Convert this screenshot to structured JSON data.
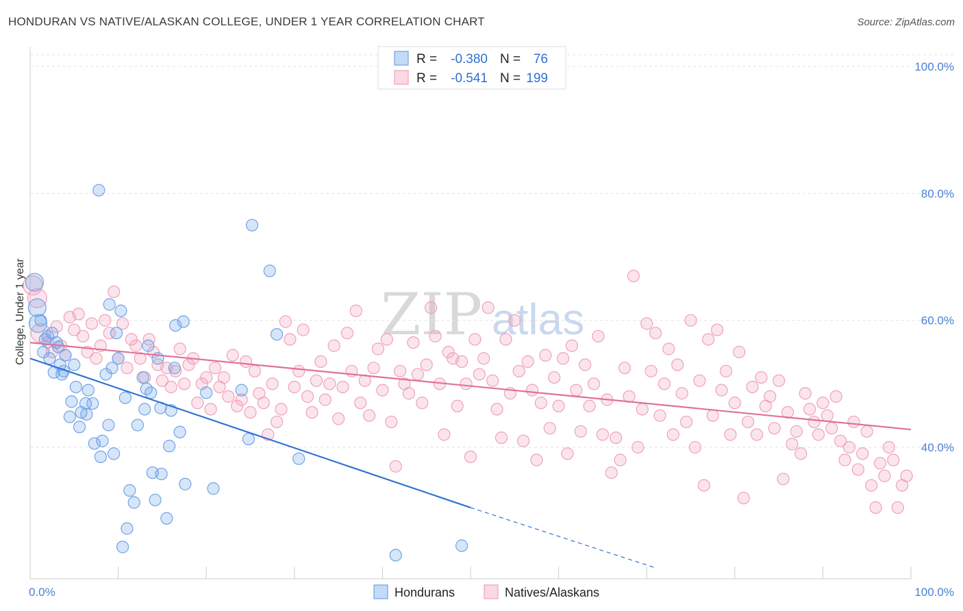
{
  "title": "HONDURAN VS NATIVE/ALASKAN COLLEGE, UNDER 1 YEAR CORRELATION CHART",
  "source": "Source: ZipAtlas.com",
  "watermark": {
    "zip": "ZIP",
    "atlas": "atlas"
  },
  "colors": {
    "blue": "#6fa3e8",
    "blue_line": "#2f72d0",
    "pink": "#f0a0ba",
    "pink_line": "#e0709a"
  },
  "legend": {
    "r_label": "R =",
    "n_label": "N =",
    "entries": [
      {
        "r": "-0.380",
        "n": "76"
      },
      {
        "r": "-0.541",
        "n": "199"
      }
    ]
  },
  "bottom_legend": [
    {
      "label": "Hondurans"
    },
    {
      "label": "Natives/Alaskans"
    }
  ],
  "chart_data": {
    "type": "scatter",
    "xlabel": "",
    "ylabel": "College, Under 1 year",
    "xlim": [
      0,
      100
    ],
    "ylim": [
      20,
      103
    ],
    "x_tick_labels": {
      "left": "0.0%",
      "right": "100.0%"
    },
    "y_ticks": [
      {
        "value": 100,
        "label": "100.0%"
      },
      {
        "value": 80,
        "label": "80.0%"
      },
      {
        "value": 60,
        "label": "60.0%"
      },
      {
        "value": 40,
        "label": "40.0%"
      }
    ],
    "grid": true,
    "series": [
      {
        "name": "Hondurans",
        "trend": {
          "x0": 0,
          "y0": 54.0,
          "x1": 50,
          "y1": 30.5,
          "dash_x1": 71,
          "dash_y1": 21.0
        },
        "points": [
          [
            0.5,
            66
          ],
          [
            0.8,
            62
          ],
          [
            0.9,
            59.5
          ],
          [
            1.2,
            60
          ],
          [
            1.5,
            55
          ],
          [
            1.7,
            57
          ],
          [
            2,
            57.5
          ],
          [
            2.2,
            54
          ],
          [
            2.5,
            58
          ],
          [
            2.7,
            51.8
          ],
          [
            3,
            56.5
          ],
          [
            3.2,
            55.8
          ],
          [
            3.4,
            53
          ],
          [
            3.6,
            51.5
          ],
          [
            3.8,
            52
          ],
          [
            4,
            54.5
          ],
          [
            4.5,
            44.8
          ],
          [
            4.7,
            47.2
          ],
          [
            5,
            53
          ],
          [
            5.2,
            49.5
          ],
          [
            5.6,
            43.2
          ],
          [
            5.8,
            45.5
          ],
          [
            6.3,
            46.9
          ],
          [
            6.4,
            45.2
          ],
          [
            6.6,
            49
          ],
          [
            7.1,
            46.9
          ],
          [
            7.3,
            40.6
          ],
          [
            7.8,
            80.5
          ],
          [
            8,
            38.5
          ],
          [
            8.2,
            41
          ],
          [
            8.6,
            51.5
          ],
          [
            8.9,
            43.5
          ],
          [
            9,
            62.5
          ],
          [
            9.3,
            52.5
          ],
          [
            9.5,
            39
          ],
          [
            9.8,
            58
          ],
          [
            10,
            54
          ],
          [
            10.3,
            61.5
          ],
          [
            10.5,
            24.3
          ],
          [
            10.8,
            47.8
          ],
          [
            11,
            27.2
          ],
          [
            11.3,
            33.2
          ],
          [
            11.8,
            31.3
          ],
          [
            12.2,
            43.5
          ],
          [
            12.8,
            51
          ],
          [
            13,
            46
          ],
          [
            13.2,
            49.2
          ],
          [
            13.4,
            56
          ],
          [
            13.7,
            48.6
          ],
          [
            13.9,
            36
          ],
          [
            14.2,
            31.7
          ],
          [
            14.5,
            54
          ],
          [
            14.8,
            46.2
          ],
          [
            14.9,
            35.8
          ],
          [
            15.5,
            28.8
          ],
          [
            15.8,
            40.2
          ],
          [
            16,
            45.8
          ],
          [
            16.4,
            52.5
          ],
          [
            16.5,
            59.2
          ],
          [
            17,
            42.4
          ],
          [
            17.4,
            59.8
          ],
          [
            17.6,
            34.2
          ],
          [
            20,
            48.6
          ],
          [
            20.8,
            33.5
          ],
          [
            24,
            49
          ],
          [
            24.8,
            41.3
          ],
          [
            25.2,
            75
          ],
          [
            27.2,
            67.8
          ],
          [
            28,
            57.8
          ],
          [
            30.5,
            38.2
          ],
          [
            41.5,
            23
          ],
          [
            49,
            24.5
          ]
        ]
      },
      {
        "name": "Natives/Alaskans",
        "trend": {
          "x0": 0,
          "y0": 56.5,
          "x1": 100,
          "y1": 42.8
        },
        "points": [
          [
            0.3,
            65.5
          ],
          [
            0.8,
            63.5
          ],
          [
            1.2,
            58
          ],
          [
            2,
            56.5
          ],
          [
            2.5,
            55
          ],
          [
            3,
            59
          ],
          [
            3.5,
            56
          ],
          [
            4,
            54.5
          ],
          [
            4.5,
            60.5
          ],
          [
            5,
            58.5
          ],
          [
            5.5,
            61
          ],
          [
            6,
            57.5
          ],
          [
            6.5,
            55
          ],
          [
            7,
            59.5
          ],
          [
            7.5,
            54
          ],
          [
            8,
            56
          ],
          [
            8.5,
            60
          ],
          [
            9,
            58
          ],
          [
            9.5,
            64.5
          ],
          [
            10,
            54
          ],
          [
            10.5,
            59.5
          ],
          [
            11,
            52.5
          ],
          [
            11.5,
            57
          ],
          [
            12,
            56
          ],
          [
            12.5,
            54
          ],
          [
            13,
            51
          ],
          [
            13.5,
            57
          ],
          [
            14,
            55
          ],
          [
            14.5,
            53
          ],
          [
            15,
            50.5
          ],
          [
            15.5,
            52.5
          ],
          [
            16,
            49.5
          ],
          [
            16.5,
            52
          ],
          [
            17,
            55.5
          ],
          [
            17.5,
            50
          ],
          [
            18,
            53
          ],
          [
            18.5,
            54
          ],
          [
            19,
            47
          ],
          [
            19.5,
            50
          ],
          [
            20,
            51
          ],
          [
            20.5,
            46
          ],
          [
            21,
            52.5
          ],
          [
            21.5,
            49.5
          ],
          [
            22,
            51
          ],
          [
            22.5,
            48
          ],
          [
            23,
            54.5
          ],
          [
            23.5,
            46.5
          ],
          [
            24,
            47.5
          ],
          [
            24.5,
            53.5
          ],
          [
            25,
            45.5
          ],
          [
            25.5,
            52
          ],
          [
            26,
            48.5
          ],
          [
            26.5,
            47
          ],
          [
            27,
            42
          ],
          [
            27.5,
            50
          ],
          [
            28,
            44
          ],
          [
            28.5,
            46
          ],
          [
            29,
            59.8
          ],
          [
            29.5,
            57
          ],
          [
            30,
            49.5
          ],
          [
            30.5,
            52
          ],
          [
            31,
            58.5
          ],
          [
            31.5,
            48
          ],
          [
            32,
            45.5
          ],
          [
            32.5,
            50.5
          ],
          [
            33,
            53.5
          ],
          [
            33.5,
            47.5
          ],
          [
            34,
            50
          ],
          [
            34.5,
            56
          ],
          [
            35,
            44.5
          ],
          [
            35.5,
            49.5
          ],
          [
            36,
            58
          ],
          [
            36.5,
            52
          ],
          [
            37,
            61.5
          ],
          [
            37.5,
            47
          ],
          [
            38,
            50.5
          ],
          [
            38.5,
            45
          ],
          [
            39,
            52.5
          ],
          [
            39.5,
            55.5
          ],
          [
            40,
            49
          ],
          [
            40.5,
            57
          ],
          [
            41,
            44
          ],
          [
            41.5,
            37
          ],
          [
            42,
            52
          ],
          [
            42.5,
            50
          ],
          [
            43,
            48.5
          ],
          [
            43.5,
            56.5
          ],
          [
            44,
            51.5
          ],
          [
            44.5,
            47
          ],
          [
            45,
            53
          ],
          [
            45.5,
            62
          ],
          [
            46,
            57.5
          ],
          [
            46.5,
            50
          ],
          [
            47,
            42
          ],
          [
            47.5,
            55
          ],
          [
            48,
            54
          ],
          [
            48.5,
            46.5
          ],
          [
            49,
            53.5
          ],
          [
            49.5,
            50
          ],
          [
            50,
            38.5
          ],
          [
            50.5,
            57
          ],
          [
            51,
            51.5
          ],
          [
            51.5,
            54
          ],
          [
            52,
            62
          ],
          [
            52.5,
            50.5
          ],
          [
            53,
            46
          ],
          [
            53.5,
            41.5
          ],
          [
            54,
            57
          ],
          [
            54.5,
            48.5
          ],
          [
            55,
            60
          ],
          [
            55.5,
            52
          ],
          [
            56,
            41
          ],
          [
            56.5,
            53.5
          ],
          [
            57,
            49
          ],
          [
            57.5,
            38
          ],
          [
            58,
            47
          ],
          [
            58.5,
            54.5
          ],
          [
            59,
            43
          ],
          [
            59.5,
            51
          ],
          [
            60,
            46.5
          ],
          [
            60.5,
            54
          ],
          [
            61,
            39
          ],
          [
            61.5,
            56
          ],
          [
            62,
            49
          ],
          [
            62.5,
            42.5
          ],
          [
            63,
            53
          ],
          [
            63.5,
            46.5
          ],
          [
            64,
            50
          ],
          [
            64.5,
            57.5
          ],
          [
            65,
            42
          ],
          [
            65.5,
            47.5
          ],
          [
            66,
            36
          ],
          [
            66.5,
            41.5
          ],
          [
            67,
            38
          ],
          [
            67.5,
            52.5
          ],
          [
            68,
            48
          ],
          [
            68.5,
            67
          ],
          [
            69,
            40
          ],
          [
            69.5,
            46
          ],
          [
            70,
            59.5
          ],
          [
            70.5,
            52
          ],
          [
            71,
            58
          ],
          [
            71.5,
            45
          ],
          [
            72,
            50
          ],
          [
            72.5,
            55.5
          ],
          [
            73,
            42
          ],
          [
            73.5,
            53
          ],
          [
            74,
            48.5
          ],
          [
            74.5,
            44
          ],
          [
            75,
            60
          ],
          [
            75.5,
            40
          ],
          [
            76,
            50.5
          ],
          [
            76.5,
            34
          ],
          [
            77,
            57
          ],
          [
            77.5,
            45
          ],
          [
            78,
            58.5
          ],
          [
            78.5,
            49
          ],
          [
            79,
            52
          ],
          [
            79.5,
            42
          ],
          [
            80,
            47
          ],
          [
            80.5,
            55
          ],
          [
            81,
            32
          ],
          [
            81.5,
            44
          ],
          [
            82,
            49.5
          ],
          [
            82.5,
            42
          ],
          [
            83,
            51
          ],
          [
            83.5,
            46.5
          ],
          [
            84,
            48
          ],
          [
            84.5,
            43
          ],
          [
            85,
            50.5
          ],
          [
            85.5,
            35
          ],
          [
            86,
            45.5
          ],
          [
            86.5,
            40.5
          ],
          [
            87,
            42.5
          ],
          [
            87.5,
            39
          ],
          [
            88,
            48.5
          ],
          [
            88.5,
            46
          ],
          [
            89,
            44
          ],
          [
            89.5,
            42
          ],
          [
            90,
            47
          ],
          [
            90.5,
            45
          ],
          [
            91,
            43
          ],
          [
            91.5,
            48
          ],
          [
            92,
            41
          ],
          [
            92.5,
            38
          ],
          [
            93,
            40
          ],
          [
            93.5,
            44
          ],
          [
            94,
            36.5
          ],
          [
            94.5,
            39
          ],
          [
            95,
            42.5
          ],
          [
            95.5,
            34
          ],
          [
            96,
            30.5
          ],
          [
            96.5,
            37.5
          ],
          [
            97,
            35.5
          ],
          [
            97.5,
            40
          ],
          [
            98,
            38
          ],
          [
            98.5,
            30.5
          ],
          [
            99,
            34
          ],
          [
            99.5,
            35.5
          ]
        ]
      }
    ]
  }
}
